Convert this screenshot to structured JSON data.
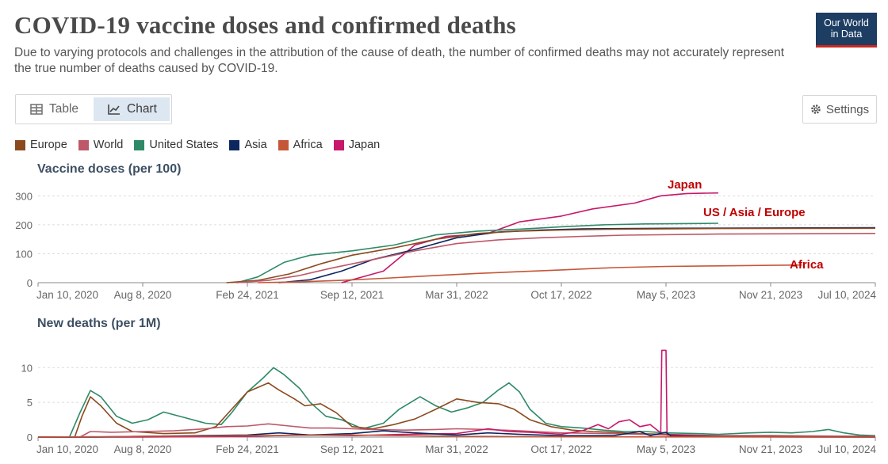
{
  "header": {
    "title": "COVID-19 vaccine doses and confirmed deaths",
    "subtitle": "Due to varying protocols and challenges in the attribution of the cause of death, the number of confirmed deaths may not accurately represent the true number of deaths caused by COVID-19.",
    "logo_line1": "Our World",
    "logo_line2": "in Data"
  },
  "tabs": {
    "table_label": "Table",
    "chart_label": "Chart"
  },
  "settings_label": "Settings",
  "legend": [
    {
      "name": "Europe",
      "color": "#8b4a1e"
    },
    {
      "name": "World",
      "color": "#be5868"
    },
    {
      "name": "United States",
      "color": "#2e8a66"
    },
    {
      "name": "Asia",
      "color": "#0d2660"
    },
    {
      "name": "Africa",
      "color": "#c55638"
    },
    {
      "name": "Japan",
      "color": "#c7186b"
    }
  ],
  "chart_data": [
    {
      "type": "line",
      "title": "Vaccine doses (per 100)",
      "x_ticks": [
        "Jan 10, 2020",
        "Aug 8, 2020",
        "Feb 24, 2021",
        "Sep 12, 2021",
        "Mar 31, 2022",
        "Oct 17, 2022",
        "May 5, 2023",
        "Nov 21, 2023",
        "Jul 10, 2024"
      ],
      "x_range": [
        0,
        8
      ],
      "ylim": [
        0,
        320
      ],
      "y_ticks": [
        0,
        100,
        200,
        300
      ],
      "annotations": [
        {
          "text": "Japan",
          "color": "#c00000"
        },
        {
          "text": "US / Asia / Europe",
          "color": "#c00000"
        },
        {
          "text": "Africa",
          "color": "#c00000"
        }
      ],
      "series": [
        {
          "name": "Japan",
          "color": "#c7186b",
          "points": [
            [
              2.9,
              0
            ],
            [
              3.3,
              40
            ],
            [
              3.6,
              130
            ],
            [
              3.9,
              160
            ],
            [
              4.3,
              170
            ],
            [
              4.6,
              210
            ],
            [
              5.0,
              230
            ],
            [
              5.3,
              255
            ],
            [
              5.7,
              275
            ],
            [
              5.95,
              300
            ],
            [
              6.2,
              308
            ],
            [
              6.5,
              310
            ]
          ]
        },
        {
          "name": "United States",
          "color": "#2e8a66",
          "points": [
            [
              1.9,
              0
            ],
            [
              2.1,
              20
            ],
            [
              2.35,
              70
            ],
            [
              2.6,
              95
            ],
            [
              3.0,
              110
            ],
            [
              3.4,
              130
            ],
            [
              3.8,
              165
            ],
            [
              4.2,
              178
            ],
            [
              4.6,
              185
            ],
            [
              5.0,
              193
            ],
            [
              5.4,
              200
            ],
            [
              5.8,
              203
            ],
            [
              6.5,
              205
            ]
          ]
        },
        {
          "name": "Asia",
          "color": "#0d2660",
          "points": [
            [
              2.3,
              0
            ],
            [
              2.6,
              10
            ],
            [
              2.9,
              40
            ],
            [
              3.2,
              80
            ],
            [
              3.6,
              115
            ],
            [
              4.0,
              155
            ],
            [
              4.4,
              175
            ],
            [
              4.8,
              182
            ],
            [
              5.2,
              186
            ],
            [
              6.0,
              188
            ],
            [
              7.0,
              189
            ],
            [
              8.0,
              190
            ]
          ]
        },
        {
          "name": "Europe",
          "color": "#8b4a1e",
          "points": [
            [
              1.8,
              0
            ],
            [
              2.1,
              8
            ],
            [
              2.4,
              30
            ],
            [
              2.7,
              65
            ],
            [
              3.0,
              95
            ],
            [
              3.4,
              120
            ],
            [
              3.8,
              150
            ],
            [
              4.2,
              170
            ],
            [
              4.6,
              178
            ],
            [
              5.0,
              182
            ],
            [
              5.5,
              185
            ],
            [
              6.5,
              187
            ],
            [
              8.0,
              188
            ]
          ]
        },
        {
          "name": "World",
          "color": "#be5868",
          "points": [
            [
              1.9,
              0
            ],
            [
              2.2,
              8
            ],
            [
              2.5,
              25
            ],
            [
              2.8,
              50
            ],
            [
              3.2,
              80
            ],
            [
              3.6,
              110
            ],
            [
              4.0,
              135
            ],
            [
              4.4,
              148
            ],
            [
              4.8,
              155
            ],
            [
              5.2,
              160
            ],
            [
              5.6,
              164
            ],
            [
              6.5,
              168
            ],
            [
              8.0,
              170
            ]
          ]
        },
        {
          "name": "Africa",
          "color": "#c55638",
          "points": [
            [
              2.1,
              0
            ],
            [
              2.5,
              3
            ],
            [
              2.9,
              8
            ],
            [
              3.3,
              15
            ],
            [
              3.8,
              25
            ],
            [
              4.2,
              32
            ],
            [
              4.6,
              38
            ],
            [
              5.0,
              44
            ],
            [
              5.5,
              52
            ],
            [
              6.0,
              56
            ],
            [
              6.5,
              58
            ],
            [
              7.0,
              60
            ],
            [
              7.3,
              61
            ]
          ]
        }
      ]
    },
    {
      "type": "line",
      "title": "New deaths (per 1M)",
      "x_ticks": [
        "Jan 10, 2020",
        "Aug 8, 2020",
        "Feb 24, 2021",
        "Sep 12, 2021",
        "Mar 31, 2022",
        "Oct 17, 2022",
        "May 5, 2023",
        "Nov 21, 2023",
        "Jul 10, 2024"
      ],
      "x_range": [
        0,
        8
      ],
      "ylim": [
        0,
        13
      ],
      "y_ticks": [
        0,
        5,
        10
      ],
      "series": [
        {
          "name": "United States",
          "color": "#2e8a66",
          "points": [
            [
              0,
              0
            ],
            [
              0.3,
              0
            ],
            [
              0.4,
              3.5
            ],
            [
              0.5,
              6.7
            ],
            [
              0.6,
              5.8
            ],
            [
              0.75,
              3
            ],
            [
              0.9,
              2
            ],
            [
              1.05,
              2.5
            ],
            [
              1.2,
              3.6
            ],
            [
              1.4,
              2.8
            ],
            [
              1.6,
              2
            ],
            [
              1.75,
              1.8
            ],
            [
              1.85,
              3.5
            ],
            [
              2.0,
              6.5
            ],
            [
              2.15,
              8.5
            ],
            [
              2.25,
              10
            ],
            [
              2.35,
              9
            ],
            [
              2.5,
              7
            ],
            [
              2.6,
              5
            ],
            [
              2.75,
              3
            ],
            [
              2.9,
              2.5
            ],
            [
              3.1,
              1.2
            ],
            [
              3.3,
              2
            ],
            [
              3.45,
              4
            ],
            [
              3.65,
              5.8
            ],
            [
              3.8,
              4.5
            ],
            [
              3.95,
              3.6
            ],
            [
              4.1,
              4.2
            ],
            [
              4.25,
              5
            ],
            [
              4.4,
              6.8
            ],
            [
              4.5,
              7.8
            ],
            [
              4.6,
              6.5
            ],
            [
              4.7,
              4
            ],
            [
              4.85,
              2
            ],
            [
              5.0,
              1.5
            ],
            [
              5.2,
              1.3
            ],
            [
              5.4,
              1
            ],
            [
              5.6,
              0.8
            ],
            [
              5.8,
              0.8
            ],
            [
              6.0,
              0.6
            ],
            [
              6.3,
              0.5
            ],
            [
              6.5,
              0.4
            ],
            [
              6.8,
              0.6
            ],
            [
              7.0,
              0.7
            ],
            [
              7.2,
              0.6
            ],
            [
              7.4,
              0.8
            ],
            [
              7.55,
              1.1
            ],
            [
              7.7,
              0.6
            ],
            [
              7.85,
              0.3
            ],
            [
              8.0,
              0.2
            ]
          ]
        },
        {
          "name": "Europe",
          "color": "#8b4a1e",
          "points": [
            [
              0,
              0
            ],
            [
              0.35,
              0
            ],
            [
              0.42,
              3
            ],
            [
              0.5,
              5.8
            ],
            [
              0.6,
              4.5
            ],
            [
              0.75,
              2
            ],
            [
              0.9,
              0.8
            ],
            [
              1.2,
              0.5
            ],
            [
              1.5,
              0.6
            ],
            [
              1.7,
              1.5
            ],
            [
              1.85,
              4
            ],
            [
              2.0,
              6.5
            ],
            [
              2.2,
              7.8
            ],
            [
              2.3,
              6.8
            ],
            [
              2.45,
              5.5
            ],
            [
              2.55,
              4.5
            ],
            [
              2.7,
              4.8
            ],
            [
              2.85,
              3.5
            ],
            [
              3.0,
              1.5
            ],
            [
              3.2,
              1.2
            ],
            [
              3.4,
              1.8
            ],
            [
              3.6,
              2.6
            ],
            [
              3.8,
              4
            ],
            [
              4.0,
              5.5
            ],
            [
              4.2,
              5
            ],
            [
              4.4,
              4.8
            ],
            [
              4.55,
              4
            ],
            [
              4.7,
              2.5
            ],
            [
              4.9,
              1.5
            ],
            [
              5.1,
              1
            ],
            [
              5.3,
              0.8
            ],
            [
              5.5,
              0.7
            ],
            [
              5.7,
              0.5
            ],
            [
              6.0,
              0.4
            ],
            [
              6.5,
              0.2
            ],
            [
              7.0,
              0.2
            ],
            [
              8.0,
              0.1
            ]
          ]
        },
        {
          "name": "World",
          "color": "#be5868",
          "points": [
            [
              0,
              0
            ],
            [
              0.4,
              0
            ],
            [
              0.5,
              0.8
            ],
            [
              0.7,
              0.7
            ],
            [
              1.0,
              0.8
            ],
            [
              1.3,
              0.9
            ],
            [
              1.6,
              1.2
            ],
            [
              1.8,
              1.5
            ],
            [
              2.0,
              1.6
            ],
            [
              2.2,
              1.9
            ],
            [
              2.4,
              1.6
            ],
            [
              2.6,
              1.3
            ],
            [
              2.8,
              1.3
            ],
            [
              3.0,
              1.2
            ],
            [
              3.2,
              1.1
            ],
            [
              3.5,
              1
            ],
            [
              3.8,
              1.1
            ],
            [
              4.0,
              1.2
            ],
            [
              4.3,
              1.1
            ],
            [
              4.6,
              0.9
            ],
            [
              5.0,
              0.6
            ],
            [
              5.5,
              0.5
            ],
            [
              6.0,
              0.3
            ],
            [
              6.5,
              0.2
            ],
            [
              7.0,
              0.15
            ],
            [
              8.0,
              0.1
            ]
          ]
        },
        {
          "name": "Japan",
          "color": "#c7186b",
          "points": [
            [
              0,
              0
            ],
            [
              1.0,
              0
            ],
            [
              2.0,
              0.1
            ],
            [
              2.5,
              0.3
            ],
            [
              3.0,
              0.2
            ],
            [
              3.5,
              0.4
            ],
            [
              4.0,
              0.5
            ],
            [
              4.3,
              1.2
            ],
            [
              4.5,
              0.8
            ],
            [
              4.7,
              0.7
            ],
            [
              5.0,
              0.4
            ],
            [
              5.2,
              0.9
            ],
            [
              5.35,
              1.8
            ],
            [
              5.45,
              1.2
            ],
            [
              5.55,
              2.2
            ],
            [
              5.65,
              2.5
            ],
            [
              5.75,
              1.5
            ],
            [
              5.85,
              1.8
            ],
            [
              5.95,
              0.6
            ],
            [
              5.96,
              12.5
            ],
            [
              6.0,
              12.5
            ],
            [
              6.01,
              0.3
            ],
            [
              6.2,
              0.2
            ],
            [
              6.5,
              0.05
            ],
            [
              8.0,
              0
            ]
          ]
        },
        {
          "name": "Asia",
          "color": "#0d2660",
          "points": [
            [
              0,
              0
            ],
            [
              0.5,
              0
            ],
            [
              1.0,
              0.1
            ],
            [
              1.5,
              0.2
            ],
            [
              2.0,
              0.3
            ],
            [
              2.3,
              0.6
            ],
            [
              2.6,
              0.3
            ],
            [
              3.0,
              0.5
            ],
            [
              3.3,
              0.9
            ],
            [
              3.6,
              0.6
            ],
            [
              4.0,
              0.3
            ],
            [
              4.3,
              0.6
            ],
            [
              4.6,
              0.4
            ],
            [
              5.0,
              0.2
            ],
            [
              5.5,
              0.2
            ],
            [
              5.75,
              0.8
            ],
            [
              5.85,
              0.2
            ],
            [
              6.0,
              0.7
            ],
            [
              6.05,
              0.1
            ],
            [
              6.5,
              0.05
            ],
            [
              8.0,
              0
            ]
          ]
        },
        {
          "name": "Africa",
          "color": "#c55638",
          "points": [
            [
              0,
              0
            ],
            [
              0.5,
              0.05
            ],
            [
              1.0,
              0.1
            ],
            [
              1.5,
              0.15
            ],
            [
              2.0,
              0.2
            ],
            [
              2.5,
              0.25
            ],
            [
              3.0,
              0.3
            ],
            [
              3.5,
              0.2
            ],
            [
              4.0,
              0.1
            ],
            [
              5.0,
              0.05
            ],
            [
              6.0,
              0.02
            ],
            [
              8.0,
              0
            ]
          ]
        }
      ]
    }
  ]
}
